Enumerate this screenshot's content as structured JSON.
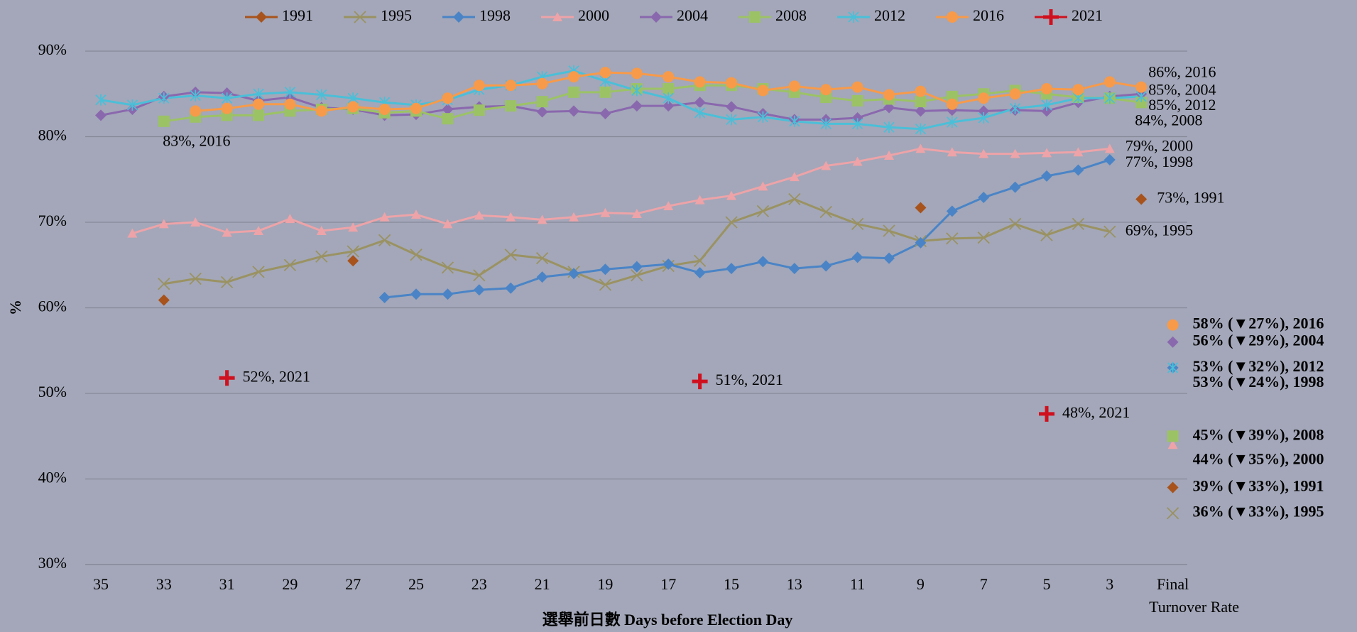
{
  "chart_data": {
    "type": "line",
    "x_label": "選舉前日數  Days before Election Day",
    "y_label": "%",
    "categories": [
      35,
      null,
      33,
      null,
      31,
      null,
      29,
      null,
      27,
      null,
      25,
      null,
      23,
      null,
      21,
      null,
      19,
      null,
      17,
      null,
      15,
      null,
      13,
      null,
      11,
      null,
      9,
      null,
      7,
      null,
      5,
      null,
      3,
      null
    ],
    "final_category": [
      "Final",
      "Turnover Rate"
    ],
    "ylim": [
      30,
      90
    ],
    "yticks": [
      {
        "value": 30,
        "label": "30%"
      },
      {
        "value": 40,
        "label": "40%"
      },
      {
        "value": 50,
        "label": "50%"
      },
      {
        "value": 60,
        "label": "60%"
      },
      {
        "value": 70,
        "label": "70%"
      },
      {
        "value": 80,
        "label": "80%"
      },
      {
        "value": 90,
        "label": "90%"
      }
    ],
    "grid": true,
    "legend": "top",
    "series": [
      {
        "name": "1991",
        "color": "#a8531c",
        "marker": "diamond",
        "values": [
          null,
          null,
          60.9,
          null,
          null,
          null,
          null,
          null,
          65.5,
          null,
          null,
          null,
          null,
          null,
          null,
          null,
          null,
          null,
          null,
          null,
          null,
          null,
          null,
          null,
          null,
          null,
          71.7,
          null,
          null,
          null,
          null,
          null,
          null,
          72.7
        ],
        "value_labels": [
          null,
          null,
          null,
          null,
          null,
          null,
          null,
          null,
          null,
          null,
          null,
          null,
          null,
          null,
          null,
          null,
          null,
          null,
          null,
          null,
          null,
          null,
          null,
          null,
          null,
          null,
          null,
          null,
          null,
          null,
          null,
          null,
          null,
          "73%, 1991"
        ],
        "final": 39,
        "final_label": "39% (▼33%), 1991"
      },
      {
        "name": "1995",
        "color": "#9a9262",
        "marker": "x",
        "values": [
          null,
          null,
          62.8,
          63.4,
          63,
          64.2,
          65,
          66,
          66.6,
          67.9,
          66.2,
          64.7,
          63.8,
          66.2,
          65.8,
          64.2,
          62.7,
          63.8,
          64.9,
          65.5,
          70,
          71.3,
          72.7,
          71.2,
          69.8,
          69,
          67.8,
          68.1,
          68.2,
          69.8,
          68.5,
          69.8,
          68.9,
          null
        ],
        "value_labels": [
          null,
          null,
          null,
          null,
          null,
          null,
          null,
          null,
          null,
          null,
          null,
          null,
          null,
          null,
          null,
          null,
          null,
          null,
          null,
          null,
          null,
          null,
          null,
          null,
          null,
          null,
          null,
          null,
          null,
          null,
          null,
          null,
          "69%, 1995",
          null
        ],
        "final": 36,
        "final_label": "36% (▼33%), 1995"
      },
      {
        "name": "1998",
        "color": "#4a84c6",
        "marker": "diamond",
        "values": [
          null,
          null,
          null,
          null,
          null,
          null,
          null,
          null,
          null,
          61.2,
          61.6,
          61.6,
          62.1,
          62.3,
          63.6,
          64,
          64.5,
          64.8,
          65.1,
          64.1,
          64.6,
          65.4,
          64.6,
          64.9,
          65.9,
          65.8,
          67.6,
          71.3,
          72.9,
          74.1,
          75.4,
          76.1,
          77.3,
          null
        ],
        "value_labels": [
          null,
          null,
          null,
          null,
          null,
          null,
          null,
          null,
          null,
          null,
          null,
          null,
          null,
          null,
          null,
          null,
          null,
          null,
          null,
          null,
          null,
          null,
          null,
          null,
          null,
          null,
          null,
          null,
          null,
          null,
          null,
          null,
          "77%, 1998",
          null
        ],
        "final": 53,
        "final_label": "53% (▼24%), 1998"
      },
      {
        "name": "2000",
        "color": "#eda3a8",
        "marker": "triangle",
        "values": [
          null,
          68.7,
          69.8,
          70,
          68.8,
          69,
          70.4,
          69,
          69.4,
          70.6,
          70.9,
          69.8,
          70.8,
          70.6,
          70.3,
          70.6,
          71.1,
          71,
          71.9,
          72.6,
          73.1,
          74.2,
          75.3,
          76.6,
          77.1,
          77.8,
          78.6,
          78.2,
          78,
          78,
          78.1,
          78.2,
          78.6,
          null
        ],
        "value_labels": [
          null,
          null,
          null,
          null,
          null,
          null,
          null,
          null,
          null,
          null,
          null,
          null,
          null,
          null,
          null,
          null,
          null,
          null,
          null,
          null,
          null,
          null,
          null,
          null,
          null,
          null,
          null,
          null,
          null,
          null,
          null,
          null,
          "79%, 2000",
          null
        ],
        "final": 44,
        "final_label": "44% (▼35%), 2000"
      },
      {
        "name": "2004",
        "color": "#8a68ae",
        "marker": "diamond",
        "values": [
          82.5,
          83.2,
          84.7,
          85.2,
          85.1,
          84.2,
          84.6,
          83.4,
          83.2,
          82.5,
          82.6,
          83.2,
          83.5,
          83.6,
          82.9,
          83,
          82.7,
          83.6,
          83.6,
          84,
          83.5,
          82.7,
          82,
          82,
          82.2,
          83.4,
          83,
          83.1,
          83,
          83.1,
          83,
          84,
          84.7,
          85
        ],
        "value_labels": [
          null,
          null,
          null,
          null,
          null,
          null,
          null,
          null,
          null,
          null,
          null,
          null,
          null,
          null,
          null,
          null,
          null,
          null,
          null,
          null,
          null,
          null,
          null,
          null,
          null,
          null,
          null,
          null,
          null,
          null,
          null,
          null,
          null,
          "85%, 2004"
        ],
        "final": 56,
        "final_label": "56% (▼29%), 2004"
      },
      {
        "name": "2008",
        "color": "#9cc266",
        "marker": "square",
        "values": [
          null,
          null,
          81.8,
          82.3,
          82.5,
          82.5,
          83,
          83.2,
          83.3,
          82.8,
          83,
          82.1,
          83.1,
          83.6,
          84.1,
          85.2,
          85.2,
          85.6,
          85.6,
          86,
          86,
          85.6,
          85.2,
          84.6,
          84.2,
          84.4,
          84.1,
          84.7,
          85,
          85.4,
          85,
          84.6,
          84.5,
          84
        ],
        "value_labels": [
          null,
          null,
          null,
          null,
          null,
          null,
          null,
          null,
          null,
          null,
          null,
          null,
          null,
          null,
          null,
          null,
          null,
          null,
          null,
          null,
          null,
          null,
          null,
          null,
          null,
          null,
          null,
          null,
          null,
          null,
          null,
          null,
          null,
          "84%, 2008"
        ],
        "final": 45,
        "final_label": "45% (▼39%), 2008"
      },
      {
        "name": "2012",
        "color": "#4bbfd8",
        "marker": "asterisk",
        "values": [
          84.3,
          83.7,
          84.5,
          84.8,
          84.5,
          85,
          85.2,
          84.9,
          84.5,
          84,
          83.7,
          84.3,
          85.5,
          86,
          87,
          87.7,
          86.5,
          85.4,
          84.5,
          82.8,
          82,
          82.3,
          81.8,
          81.5,
          81.5,
          81.1,
          80.9,
          81.7,
          82.2,
          83.3,
          83.7,
          84.5,
          84.5,
          84.7
        ],
        "value_labels": [
          null,
          null,
          null,
          null,
          null,
          null,
          null,
          null,
          null,
          null,
          null,
          null,
          null,
          null,
          null,
          null,
          null,
          null,
          null,
          null,
          null,
          null,
          null,
          null,
          null,
          null,
          null,
          null,
          null,
          null,
          null,
          null,
          null,
          "85%, 2012"
        ],
        "final": 53,
        "final_label": "53% (▼32%), 2012"
      },
      {
        "name": "2016",
        "color": "#f79a4a",
        "marker": "circle",
        "values": [
          null,
          null,
          null,
          83,
          83.3,
          83.8,
          83.8,
          83,
          83.5,
          83.2,
          83.3,
          84.5,
          86,
          86,
          86.2,
          87,
          87.5,
          87.4,
          87,
          86.4,
          86.3,
          85.4,
          85.9,
          85.5,
          85.8,
          84.9,
          85.3,
          83.8,
          84.5,
          85,
          85.6,
          85.5,
          86.4,
          85.8
        ],
        "value_labels": [
          null,
          null,
          null,
          "83%, 2016",
          null,
          null,
          null,
          null,
          null,
          null,
          null,
          null,
          null,
          null,
          null,
          null,
          null,
          null,
          null,
          null,
          null,
          null,
          null,
          null,
          null,
          null,
          null,
          null,
          null,
          null,
          null,
          null,
          null,
          "86%, 2016"
        ],
        "final": 58,
        "final_label": "58% (▼27%), 2016"
      },
      {
        "name": "2021",
        "color": "#d0101e",
        "marker": "plus",
        "values": [
          null,
          null,
          null,
          null,
          51.8,
          null,
          null,
          null,
          null,
          null,
          null,
          null,
          null,
          null,
          null,
          null,
          null,
          null,
          null,
          51.4,
          null,
          null,
          null,
          null,
          null,
          null,
          null,
          null,
          null,
          null,
          47.6,
          null,
          null,
          null
        ],
        "value_labels": [
          null,
          null,
          null,
          null,
          "52%, 2021",
          null,
          null,
          null,
          null,
          null,
          null,
          null,
          null,
          null,
          null,
          null,
          null,
          null,
          null,
          "51%, 2021",
          null,
          null,
          null,
          null,
          null,
          null,
          null,
          null,
          null,
          null,
          "48%, 2021",
          null,
          null,
          null
        ]
      }
    ]
  }
}
